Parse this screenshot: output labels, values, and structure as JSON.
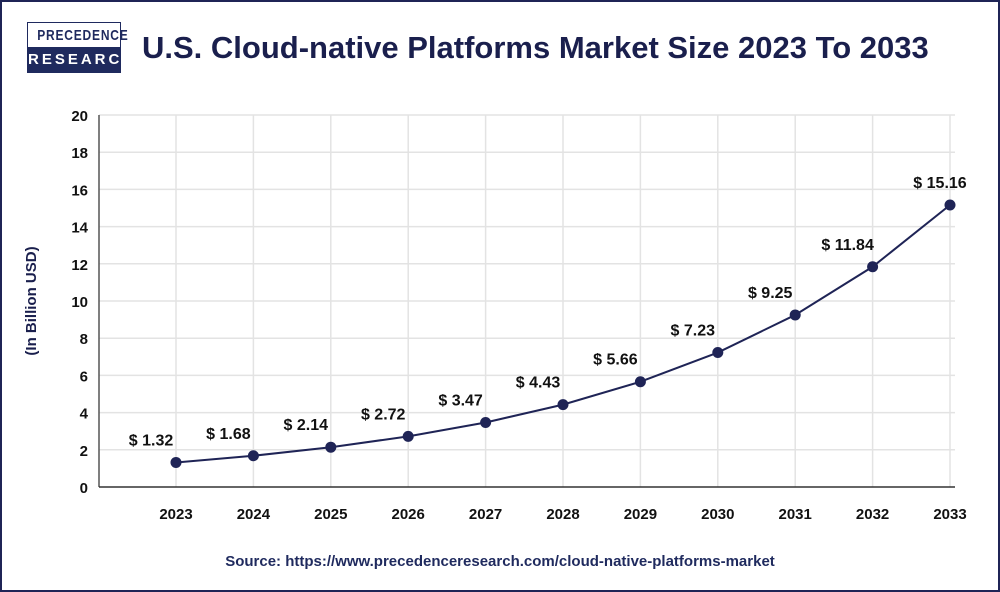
{
  "logo": {
    "line1": "PRECEDENCE",
    "line2": "RESEARCH"
  },
  "title": "U.S. Cloud-native Platforms Market Size 2023 To 2033",
  "source": "Source: https://www.precedenceresearch.com/cloud-native-platforms-market",
  "colors": {
    "line": "#1f2456",
    "text": "#1a1f4d",
    "grid": "#e3e3e3"
  },
  "chart_data": {
    "type": "line",
    "title": "U.S. Cloud-native Platforms Market Size 2023 To 2033",
    "xlabel": "",
    "ylabel": "(In Billion USD)",
    "ylim": [
      0,
      20
    ],
    "yticks": [
      0,
      2,
      4,
      6,
      8,
      10,
      12,
      14,
      16,
      18,
      20
    ],
    "grid": true,
    "categories": [
      "2023",
      "2024",
      "2025",
      "2026",
      "2027",
      "2028",
      "2029",
      "2030",
      "2031",
      "2032",
      "2033"
    ],
    "values": [
      1.32,
      1.68,
      2.14,
      2.72,
      3.47,
      4.43,
      5.66,
      7.23,
      9.25,
      11.84,
      15.16
    ],
    "data_labels": [
      "$ 1.32",
      "$ 1.68",
      "$ 2.14",
      "$ 2.72",
      "$ 3.47",
      "$ 4.43",
      "$ 5.66",
      "$ 7.23",
      "$ 9.25",
      "$ 11.84",
      "$ 15.16"
    ]
  }
}
